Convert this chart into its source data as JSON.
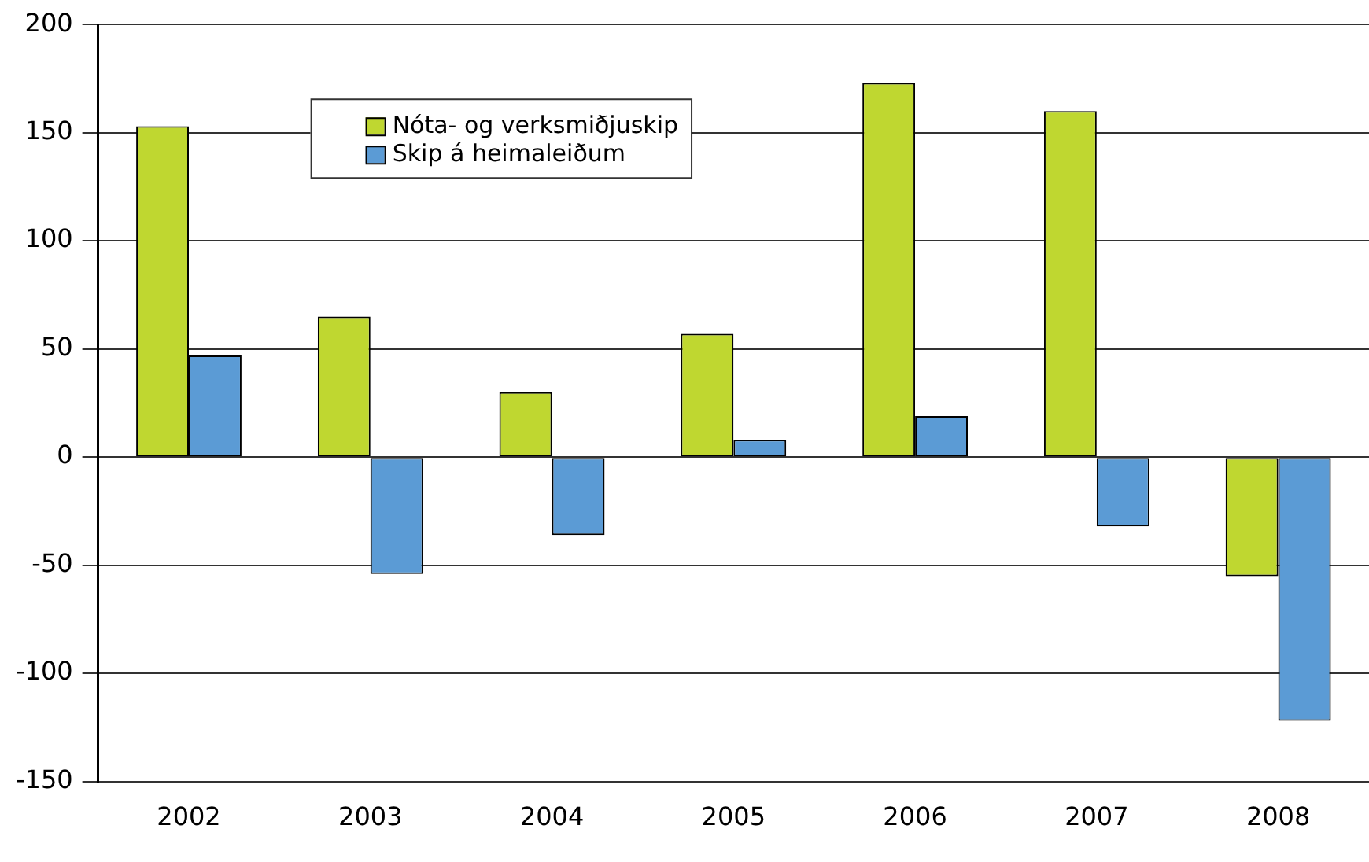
{
  "chart_data": {
    "type": "bar",
    "categories": [
      "2002",
      "2003",
      "2004",
      "2005",
      "2006",
      "2007",
      "2008"
    ],
    "series": [
      {
        "name": "Nóta- og verksmiðjuskip",
        "color": "#bfd730",
        "values": [
          153,
          65,
          30,
          57,
          173,
          160,
          -55
        ]
      },
      {
        "name": "Skip á heimaleiðum",
        "color": "#5b9bd5",
        "values": [
          47,
          -54,
          -36,
          8,
          19,
          -32,
          -122
        ]
      }
    ],
    "ylim": [
      -150,
      200
    ],
    "yticks": [
      -150,
      -100,
      -50,
      0,
      50,
      100,
      150,
      200
    ],
    "grid": "y",
    "legend": "top"
  }
}
